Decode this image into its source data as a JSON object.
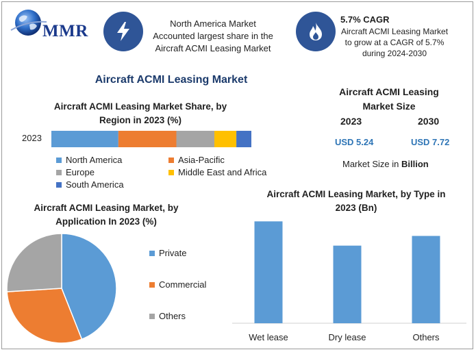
{
  "brand": {
    "logo_text": "MMR"
  },
  "header": {
    "highlight1": {
      "text": "North America Market Accounted largest share in the Aircraft ACMI Leasing Market",
      "icon": "lightning-icon"
    },
    "highlight2": {
      "heading": "5.7% CAGR",
      "text": "Aircraft ACMI Leasing Market to grow at a CAGR of 5.7% during 2024-2030",
      "icon": "flame-icon"
    }
  },
  "main_title": "Aircraft ACMI Leasing Market",
  "market_size": {
    "title": "Aircraft ACMI Leasing Market Size",
    "year_a": "2023",
    "year_b": "2030",
    "value_a": "USD 5.24",
    "value_b": "USD 7.72",
    "unit_prefix": "Market Size in ",
    "unit": "Billion"
  },
  "colors": {
    "blue": "#5b9bd5",
    "orange": "#ed7d31",
    "gray": "#a5a5a5",
    "yellow": "#ffc000",
    "darkblue": "#4472c4",
    "icon_bg": "#2f5597"
  },
  "chart_data": [
    {
      "type": "bar",
      "orientation": "horizontal-stacked",
      "title": "Aircraft ACMI Leasing Market Share, by Region in 2023 (%)",
      "categories": [
        "2023"
      ],
      "series": [
        {
          "name": "North America",
          "values": [
            33.5
          ],
          "color": "#5b9bd5"
        },
        {
          "name": "Asia-Pacific",
          "values": [
            29
          ],
          "color": "#ed7d31"
        },
        {
          "name": "Europe",
          "values": [
            19
          ],
          "color": "#a5a5a5"
        },
        {
          "name": "Middle East and Africa",
          "values": [
            11
          ],
          "color": "#ffc000"
        },
        {
          "name": "South America",
          "values": [
            7.5
          ],
          "color": "#4472c4"
        }
      ],
      "legend": "bottom"
    },
    {
      "type": "pie",
      "title": "Aircraft ACMI Leasing Market, by Application In 2023 (%)",
      "labels": [
        "Private",
        "Commercial",
        "Others"
      ],
      "values": [
        44,
        30,
        26
      ],
      "colors": [
        "#5b9bd5",
        "#ed7d31",
        "#a5a5a5"
      ],
      "legend": "right"
    },
    {
      "type": "bar",
      "title": "Aircraft ACMI Leasing Market, by Type in 2023 (Bn)",
      "categories": [
        "Wet lease",
        "Dry lease",
        "Others"
      ],
      "values": [
        2.1,
        1.6,
        1.8
      ],
      "color": "#5b9bd5",
      "ylim": [
        0,
        2.4
      ],
      "grid": false
    }
  ]
}
